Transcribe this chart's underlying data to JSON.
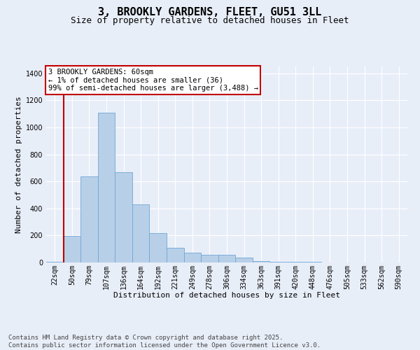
{
  "title1": "3, BROOKLY GARDENS, FLEET, GU51 3LL",
  "title2": "Size of property relative to detached houses in Fleet",
  "xlabel": "Distribution of detached houses by size in Fleet",
  "ylabel": "Number of detached properties",
  "categories": [
    "22sqm",
    "50sqm",
    "79sqm",
    "107sqm",
    "136sqm",
    "164sqm",
    "192sqm",
    "221sqm",
    "249sqm",
    "278sqm",
    "306sqm",
    "334sqm",
    "363sqm",
    "391sqm",
    "420sqm",
    "448sqm",
    "476sqm",
    "505sqm",
    "533sqm",
    "562sqm",
    "590sqm"
  ],
  "values": [
    5,
    195,
    635,
    1110,
    670,
    430,
    215,
    110,
    75,
    55,
    55,
    35,
    10,
    5,
    5,
    3,
    1,
    0,
    0,
    0,
    0
  ],
  "bar_color": "#b8cfe8",
  "bar_edge_color": "#6fa8d6",
  "annotation_text": "3 BROOKLY GARDENS: 60sqm\n← 1% of detached houses are smaller (36)\n99% of semi-detached houses are larger (3,488) →",
  "vline_color": "#c00000",
  "property_bin_index": 1,
  "ylim": [
    0,
    1450
  ],
  "yticks": [
    0,
    200,
    400,
    600,
    800,
    1000,
    1200,
    1400
  ],
  "bg_color": "#e8eef8",
  "footnote": "Contains HM Land Registry data © Crown copyright and database right 2025.\nContains public sector information licensed under the Open Government Licence v3.0.",
  "title1_fontsize": 11,
  "title2_fontsize": 9,
  "xlabel_fontsize": 8,
  "ylabel_fontsize": 8,
  "annotation_fontsize": 7.5,
  "footnote_fontsize": 6.5,
  "tick_fontsize": 7
}
